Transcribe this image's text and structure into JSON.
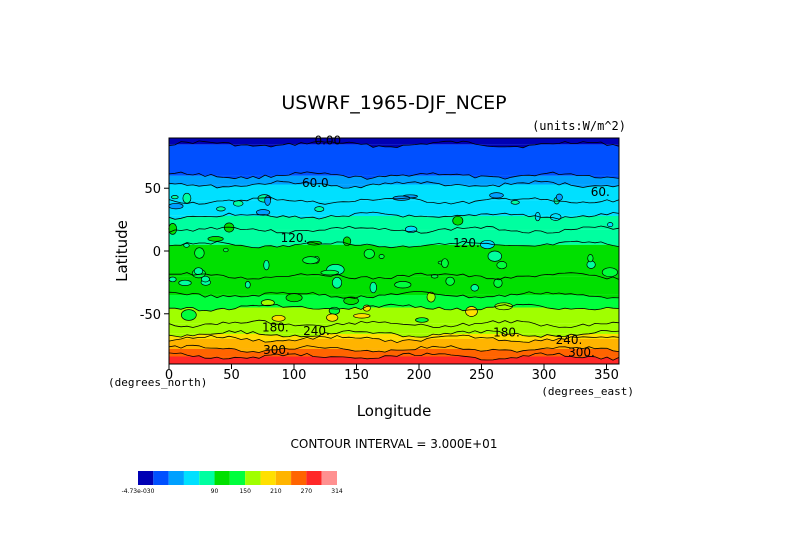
{
  "chart_data": {
    "type": "heatmap",
    "title": "USWRF_1965-DJF_NCEP",
    "units": "(units:W/m^2)",
    "xlabel": "Longitude",
    "ylabel": "Latitude",
    "x_unit_label": "(degrees_east)",
    "y_unit_label": "(degrees_north)",
    "xlim": [
      0,
      360
    ],
    "ylim": [
      -90,
      90
    ],
    "x_ticks": [
      "0",
      "50",
      "100",
      "150",
      "200",
      "250",
      "300",
      "350"
    ],
    "y_ticks": [
      "50",
      "0",
      "-50"
    ],
    "contour_interval_text": "CONTOUR INTERVAL = 3.000E+01",
    "contour_labels": [
      {
        "text": "0.00",
        "lon": 127,
        "lat": 85
      },
      {
        "text": "60.0",
        "lon": 117,
        "lat": 51
      },
      {
        "text": "60.",
        "lon": 345,
        "lat": 44
      },
      {
        "text": "120.",
        "lon": 100,
        "lat": 7
      },
      {
        "text": "120.",
        "lon": 238,
        "lat": 3
      },
      {
        "text": "180.",
        "lon": 85,
        "lat": -64
      },
      {
        "text": "240.",
        "lon": 118,
        "lat": -67
      },
      {
        "text": "180.",
        "lon": 270,
        "lat": -68
      },
      {
        "text": "240.",
        "lon": 320,
        "lat": -74
      },
      {
        "text": "300.",
        "lon": 86,
        "lat": -82
      },
      {
        "text": "300.",
        "lon": 330,
        "lat": -84
      }
    ],
    "zonal_bands_by_latitude": [
      {
        "lat": [
          85,
          90
        ],
        "value": -10
      },
      {
        "lat": [
          60,
          85
        ],
        "value": 10
      },
      {
        "lat": [
          53,
          60
        ],
        "value": 40
      },
      {
        "lat": [
          40,
          53
        ],
        "value": 70
      },
      {
        "lat": [
          28,
          40
        ],
        "value": 85
      },
      {
        "lat": [
          17,
          28
        ],
        "value": 100
      },
      {
        "lat": [
          5,
          17
        ],
        "value": 115
      },
      {
        "lat": [
          -20,
          5
        ],
        "value": 130
      },
      {
        "lat": [
          -35,
          -20
        ],
        "value": 145
      },
      {
        "lat": [
          -45,
          -35
        ],
        "value": 160
      },
      {
        "lat": [
          -58,
          -45
        ],
        "value": 185
      },
      {
        "lat": [
          -66,
          -58
        ],
        "value": 205
      },
      {
        "lat": [
          -70,
          -66
        ],
        "value": 225
      },
      {
        "lat": [
          -78,
          -70
        ],
        "value": 255
      },
      {
        "lat": [
          -84,
          -78
        ],
        "value": 285
      },
      {
        "lat": [
          -90,
          -84
        ],
        "value": 305
      }
    ],
    "colorbar": {
      "boundaries_labeled": [
        "-4.73e-030",
        "90",
        "150",
        "210",
        "270",
        "314"
      ],
      "colors": [
        "#0000b4",
        "#0050ff",
        "#00a0ff",
        "#00e0ff",
        "#00ffa0",
        "#00e000",
        "#00ff3c",
        "#a0ff00",
        "#ffe000",
        "#ffb400",
        "#ff6400",
        "#ff2828",
        "#ff9090"
      ]
    }
  }
}
